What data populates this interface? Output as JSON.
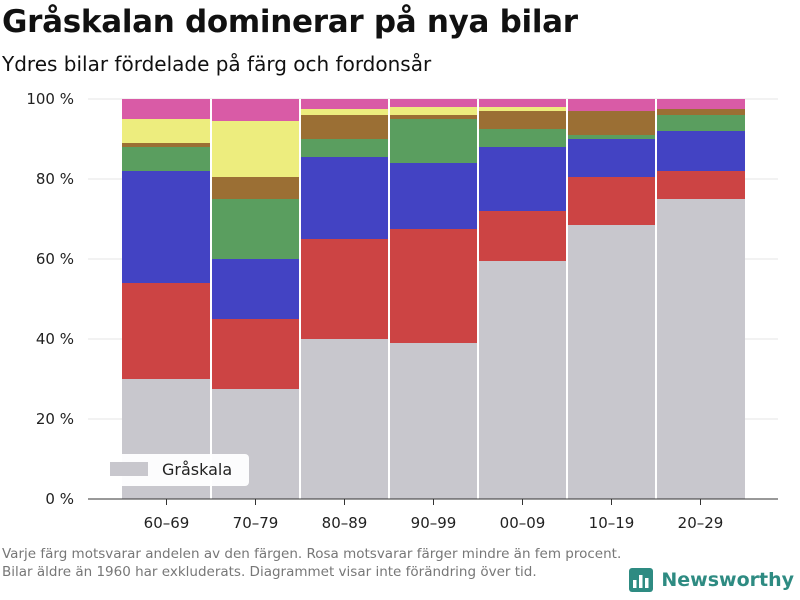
{
  "title": "Gråskalan dominerar på nya bilar",
  "subtitle": "Ydres bilar fördelade på färg och fordonsår",
  "note": "Varje färg motsvarar andelen av den färgen. Rosa motsvarar färger mindre än fem procent. Bilar äldre än 1960 har exkluderats. Diagrammet visar inte förändring över tid.",
  "brand": {
    "name": "Newsworthy",
    "logo_icon": "bar-chart-logo-icon"
  },
  "chart_data": {
    "type": "bar",
    "stacked": true,
    "categories": [
      "60–69",
      "70–79",
      "80–89",
      "90–99",
      "00–09",
      "10–19",
      "20–29"
    ],
    "ylim": [
      0,
      100
    ],
    "yticks": [
      0,
      20,
      40,
      60,
      80,
      100
    ],
    "ytick_labels": [
      "0 %",
      "20 %",
      "40 %",
      "60 %",
      "80 %",
      "100 %"
    ],
    "grid": true,
    "legend_position": "bottom-left",
    "series": [
      {
        "name": "Gråskala",
        "color": "#c8c7cd",
        "values": [
          30,
          27.5,
          40,
          39,
          59.5,
          68.5,
          75
        ]
      },
      {
        "color": "#cc4444",
        "values": [
          24,
          17.5,
          25,
          28.5,
          12.5,
          12,
          7
        ]
      },
      {
        "color": "#4343c3",
        "values": [
          28,
          15,
          20.5,
          16.5,
          16,
          9.5,
          10
        ]
      },
      {
        "color": "#5a9e5f",
        "values": [
          6,
          15,
          4.5,
          11,
          4.5,
          1,
          4
        ]
      },
      {
        "color": "#9b6f34",
        "values": [
          1,
          5.5,
          6,
          1,
          4.5,
          6,
          1.5
        ]
      },
      {
        "color": "#eded7e",
        "values": [
          6,
          14,
          1.5,
          2,
          1,
          0,
          0
        ]
      },
      {
        "color": "#d95ba6",
        "values": [
          5,
          5.5,
          2.5,
          2,
          2,
          3,
          2.5
        ]
      }
    ]
  }
}
